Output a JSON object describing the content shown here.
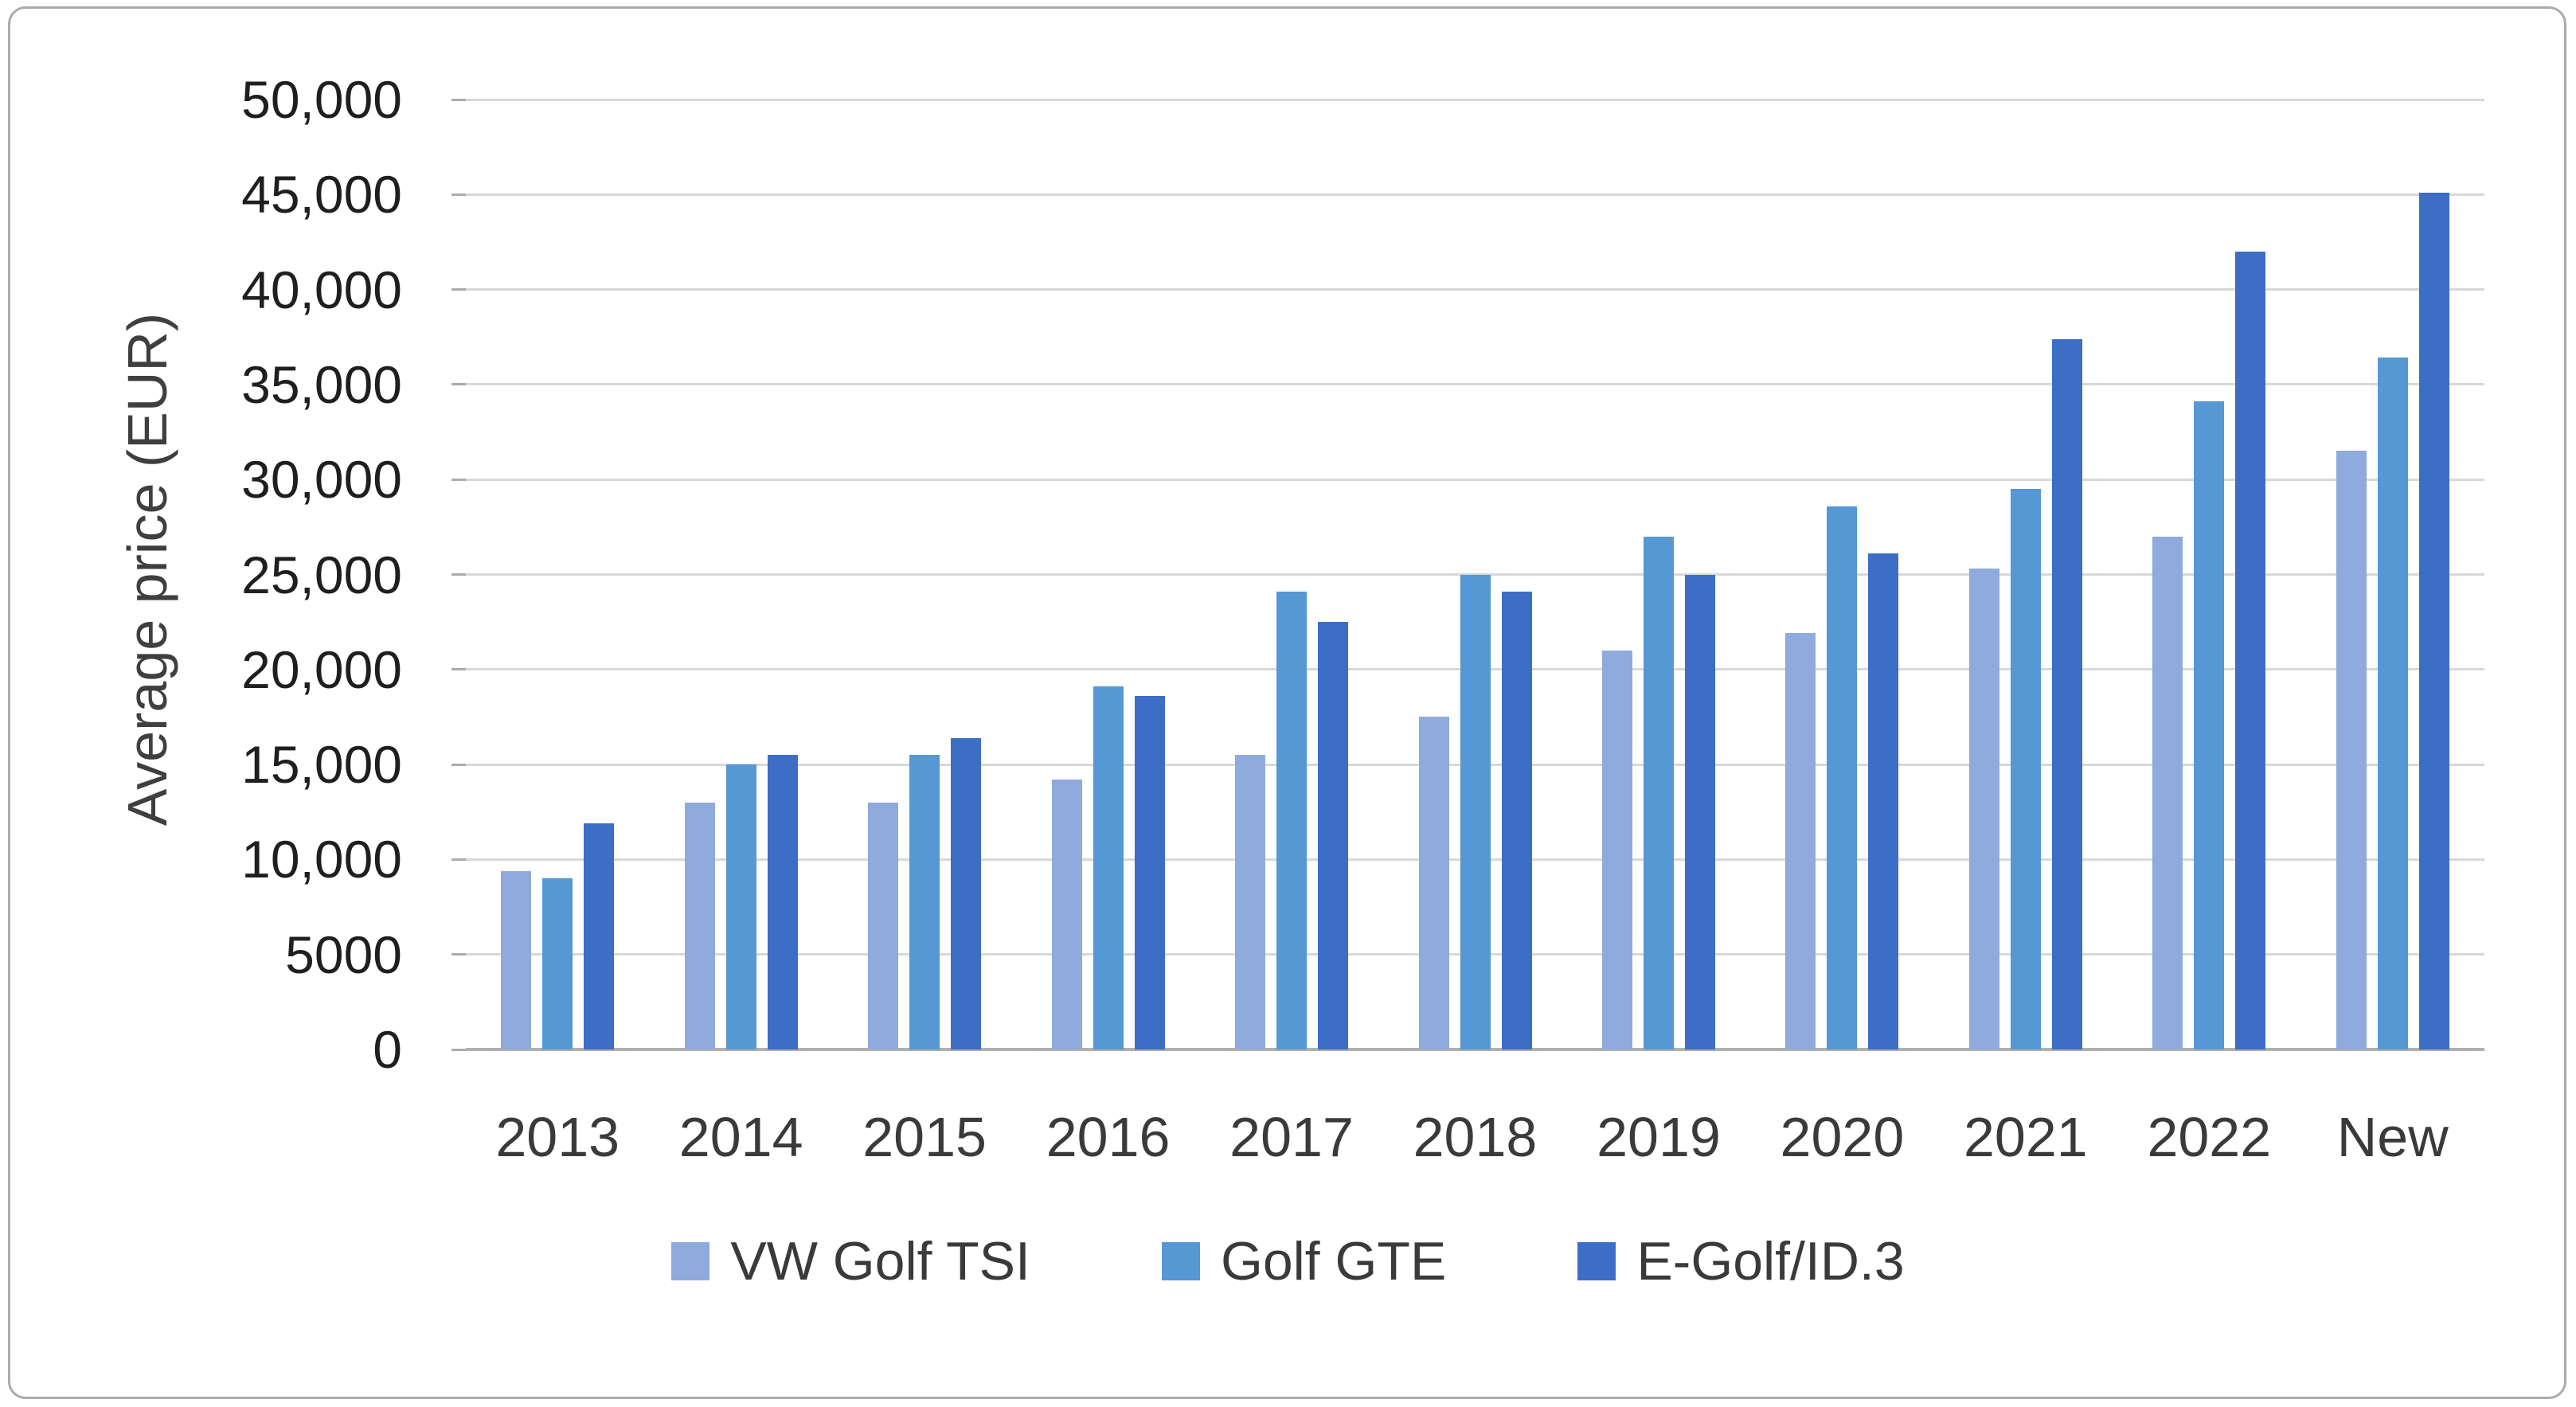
{
  "frame": {
    "border_color": "#ABABAB",
    "background_color": "#FFFFFF"
  },
  "chart_data": {
    "type": "bar",
    "title": "",
    "xlabel": "",
    "ylabel": "Average price (EUR)",
    "ylim": [
      0,
      50000
    ],
    "ytick_interval": 5000,
    "ytick_labels": [
      "0",
      "5000",
      "10,000",
      "15,000",
      "20,000",
      "25,000",
      "30,000",
      "35,000",
      "40,000",
      "45,000",
      "50,000"
    ],
    "grid": "horizontal-only",
    "legend_position": "bottom-center",
    "categories": [
      "2013",
      "2014",
      "2015",
      "2016",
      "2017",
      "2018",
      "2019",
      "2020",
      "2021",
      "2022",
      "New"
    ],
    "series": [
      {
        "name": "VW Golf TSI",
        "color": "#8FAADC",
        "values": [
          9400,
          13000,
          13000,
          14200,
          15500,
          17500,
          21000,
          21900,
          25300,
          27000,
          31500
        ]
      },
      {
        "name": "Golf GTE",
        "color": "#5598D4",
        "values": [
          9000,
          15000,
          15500,
          19100,
          24100,
          25000,
          27000,
          28600,
          29500,
          34100,
          36400
        ]
      },
      {
        "name": "E-Golf/ID.3",
        "color": "#3D6EC6",
        "values": [
          11900,
          15500,
          16400,
          18600,
          22500,
          24100,
          25000,
          26100,
          37400,
          42000,
          45100
        ]
      }
    ]
  },
  "colors": {
    "gridline": "#D8D8D8",
    "zero_axis_line": "#B0B0B0",
    "tick_mark": "#ABABAB",
    "ytick_text": "#1F1F1F",
    "xtick_text": "#3A3A3A",
    "ytitle_text": "#3F3F3F",
    "legend_text": "#3A3A3A"
  }
}
